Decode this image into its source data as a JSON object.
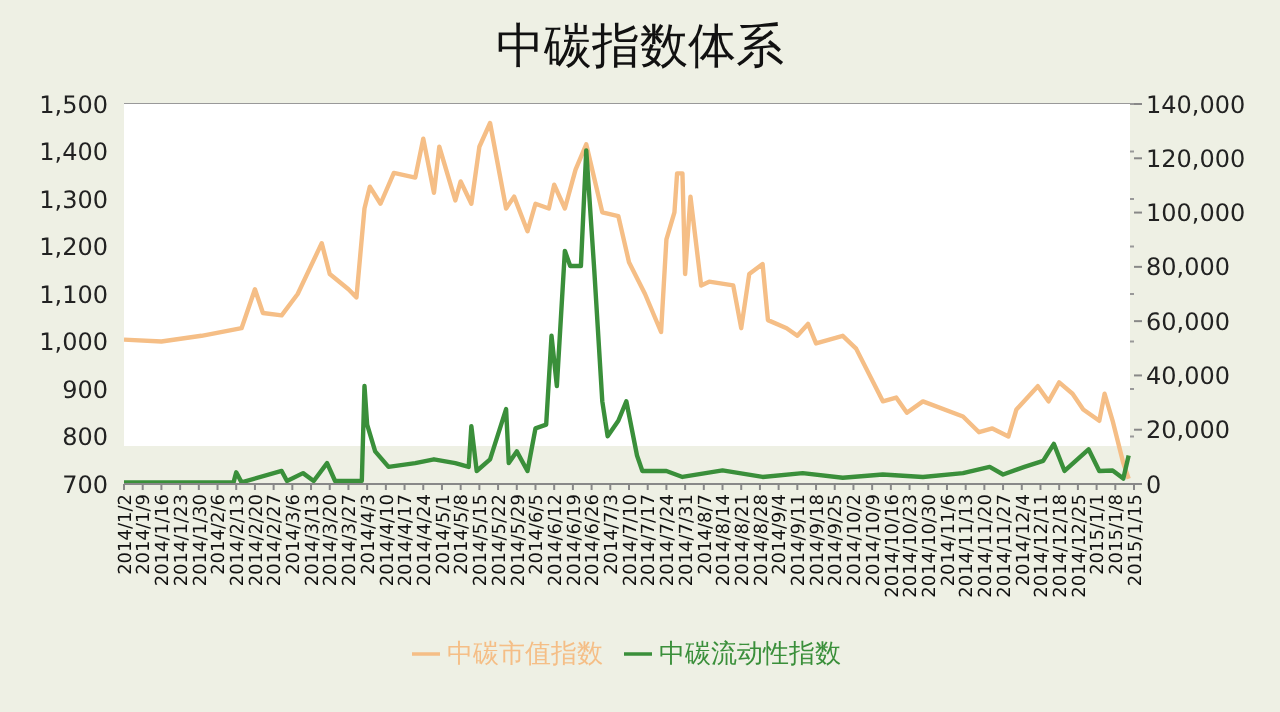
{
  "chart_data": {
    "type": "line",
    "title": "中碳指数体系",
    "xlim": [
      "2014-01-02",
      "2015-01-15"
    ],
    "xticks": [
      {
        "value": "2014-01-02",
        "label": "2014/1/2"
      },
      {
        "value": "2014-01-09",
        "label": "2014/1/9"
      },
      {
        "value": "2014-01-16",
        "label": "2014/1/16"
      },
      {
        "value": "2014-01-23",
        "label": "2014/1/23"
      },
      {
        "value": "2014-01-30",
        "label": "2014/1/30"
      },
      {
        "value": "2014-02-06",
        "label": "2014/2/6"
      },
      {
        "value": "2014-02-13",
        "label": "2014/2/13"
      },
      {
        "value": "2014-02-20",
        "label": "2014/2/20"
      },
      {
        "value": "2014-02-27",
        "label": "2014/2/27"
      },
      {
        "value": "2014-03-06",
        "label": "2014/3/6"
      },
      {
        "value": "2014-03-13",
        "label": "2014/3/13"
      },
      {
        "value": "2014-03-20",
        "label": "2014/3/20"
      },
      {
        "value": "2014-03-27",
        "label": "2014/3/27"
      },
      {
        "value": "2014-04-03",
        "label": "2014/4/3"
      },
      {
        "value": "2014-04-10",
        "label": "2014/4/10"
      },
      {
        "value": "2014-04-17",
        "label": "2014/4/17"
      },
      {
        "value": "2014-04-24",
        "label": "2014/4/24"
      },
      {
        "value": "2014-05-01",
        "label": "2014/5/1"
      },
      {
        "value": "2014-05-08",
        "label": "2014/5/8"
      },
      {
        "value": "2014-05-15",
        "label": "2014/5/15"
      },
      {
        "value": "2014-05-22",
        "label": "2014/5/22"
      },
      {
        "value": "2014-05-29",
        "label": "2014/5/29"
      },
      {
        "value": "2014-06-05",
        "label": "2014/6/5"
      },
      {
        "value": "2014-06-12",
        "label": "2014/6/12"
      },
      {
        "value": "2014-06-19",
        "label": "2014/6/19"
      },
      {
        "value": "2014-06-26",
        "label": "2014/6/26"
      },
      {
        "value": "2014-07-03",
        "label": "2014/7/3"
      },
      {
        "value": "2014-07-10",
        "label": "2014/7/10"
      },
      {
        "value": "2014-07-17",
        "label": "2014/7/17"
      },
      {
        "value": "2014-07-24",
        "label": "2014/7/24"
      },
      {
        "value": "2014-07-31",
        "label": "2014/7/31"
      },
      {
        "value": "2014-08-07",
        "label": "2014/8/7"
      },
      {
        "value": "2014-08-14",
        "label": "2014/8/14"
      },
      {
        "value": "2014-08-21",
        "label": "2014/8/21"
      },
      {
        "value": "2014-08-28",
        "label": "2014/8/28"
      },
      {
        "value": "2014-09-04",
        "label": "2014/9/4"
      },
      {
        "value": "2014-09-11",
        "label": "2014/9/11"
      },
      {
        "value": "2014-09-18",
        "label": "2014/9/18"
      },
      {
        "value": "2014-09-25",
        "label": "2014/9/25"
      },
      {
        "value": "2014-10-02",
        "label": "2014/10/2"
      },
      {
        "value": "2014-10-09",
        "label": "2014/10/9"
      },
      {
        "value": "2014-10-16",
        "label": "2014/10/16"
      },
      {
        "value": "2014-10-23",
        "label": "2014/10/23"
      },
      {
        "value": "2014-10-30",
        "label": "2014/10/30"
      },
      {
        "value": "2014-11-06",
        "label": "2014/11/6"
      },
      {
        "value": "2014-11-13",
        "label": "2014/11/13"
      },
      {
        "value": "2014-11-20",
        "label": "2014/11/20"
      },
      {
        "value": "2014-11-27",
        "label": "2014/11/27"
      },
      {
        "value": "2014-12-04",
        "label": "2014/12/4"
      },
      {
        "value": "2014-12-11",
        "label": "2014/12/11"
      },
      {
        "value": "2014-12-18",
        "label": "2014/12/18"
      },
      {
        "value": "2014-12-25",
        "label": "2014/12/25"
      },
      {
        "value": "2015-01-01",
        "label": "2015/1/1"
      },
      {
        "value": "2015-01-08",
        "label": "2015/1/8"
      },
      {
        "value": "2015-01-15",
        "label": "2015/1/15"
      }
    ],
    "ylim": [
      700,
      1500
    ],
    "yticks": [
      {
        "value": 700,
        "label": "700"
      },
      {
        "value": 800,
        "label": "800"
      },
      {
        "value": 900,
        "label": "900"
      },
      {
        "value": 1000,
        "label": "1,000"
      },
      {
        "value": 1100,
        "label": "1,100"
      },
      {
        "value": 1200,
        "label": "1,200"
      },
      {
        "value": 1300,
        "label": "1,300"
      },
      {
        "value": 1400,
        "label": "1,400"
      },
      {
        "value": 1500,
        "label": "1,500"
      }
    ],
    "y2lim": [
      0,
      140000
    ],
    "y2ticks": [
      {
        "value": 0,
        "label": "0"
      },
      {
        "value": 20000,
        "label": "20,000"
      },
      {
        "value": 40000,
        "label": "40,000"
      },
      {
        "value": 60000,
        "label": "60,000"
      },
      {
        "value": 80000,
        "label": "80,000"
      },
      {
        "value": 100000,
        "label": "100,000"
      },
      {
        "value": 120000,
        "label": "120,000"
      },
      {
        "value": 140000,
        "label": "140,000"
      }
    ],
    "grid": "y",
    "legend": "bottom",
    "marker": "none",
    "line_style": "solid",
    "series": [
      {
        "name": "中碳市值指数",
        "color": "#f5be86",
        "x": [
          "2014-01-02",
          "2014-01-16",
          "2014-01-31",
          "2014-02-15",
          "2014-02-20",
          "2014-02-23",
          "2014-03-02",
          "2014-03-08",
          "2014-03-17",
          "2014-03-20",
          "2014-03-27",
          "2014-03-30",
          "2014-04-02",
          "2014-04-04",
          "2014-04-08",
          "2014-04-13",
          "2014-04-21",
          "2014-04-24",
          "2014-04-28",
          "2014-04-30",
          "2014-05-06",
          "2014-05-08",
          "2014-05-12",
          "2014-05-15",
          "2014-05-19",
          "2014-05-25",
          "2014-05-28",
          "2014-06-02",
          "2014-06-05",
          "2014-06-10",
          "2014-06-12",
          "2014-06-16",
          "2014-06-20",
          "2014-06-24",
          "2014-06-30",
          "2014-07-06",
          "2014-07-10",
          "2014-07-16",
          "2014-07-22",
          "2014-07-24",
          "2014-07-27",
          "2014-07-28",
          "2014-07-30",
          "2014-07-31",
          "2014-08-02",
          "2014-08-06",
          "2014-08-09",
          "2014-08-18",
          "2014-08-21",
          "2014-08-24",
          "2014-08-29",
          "2014-08-31",
          "2014-09-07",
          "2014-09-11",
          "2014-09-15",
          "2014-09-18",
          "2014-09-28",
          "2014-10-03",
          "2014-10-13",
          "2014-10-18",
          "2014-10-22",
          "2014-10-28",
          "2014-11-12",
          "2014-11-18",
          "2014-11-23",
          "2014-11-29",
          "2014-12-02",
          "2014-12-10",
          "2014-12-14",
          "2014-12-18",
          "2014-12-23",
          "2014-12-27",
          "2015-01-02",
          "2015-01-04",
          "2015-01-07",
          "2015-01-11",
          "2015-01-13"
        ],
        "values": [
          1004,
          1000,
          1012,
          1028,
          1110,
          1060,
          1055,
          1100,
          1207,
          1142,
          1110,
          1093,
          1280,
          1326,
          1290,
          1355,
          1345,
          1427,
          1313,
          1410,
          1297,
          1337,
          1290,
          1410,
          1460,
          1280,
          1305,
          1232,
          1290,
          1280,
          1330,
          1280,
          1362,
          1415,
          1272,
          1264,
          1167,
          1100,
          1020,
          1215,
          1272,
          1354,
          1354,
          1142,
          1305,
          1118,
          1126,
          1118,
          1028,
          1142,
          1163,
          1045,
          1028,
          1012,
          1037,
          996,
          1012,
          985,
          874,
          882,
          850,
          874,
          842,
          809,
          817,
          800,
          857,
          906,
          874,
          914,
          890,
          857,
          833,
          890,
          833,
          744,
          711
        ]
      },
      {
        "name": "中碳流动性指数",
        "color": "#3a8f3a",
        "axis": "y2",
        "x": [
          "2014-01-02",
          "2014-02-12",
          "2014-02-13",
          "2014-02-15",
          "2014-03-02",
          "2014-03-04",
          "2014-03-10",
          "2014-03-14",
          "2014-03-19",
          "2014-03-22",
          "2014-04-01",
          "2014-04-02",
          "2014-04-03",
          "2014-04-06",
          "2014-04-11",
          "2014-04-21",
          "2014-04-28",
          "2014-05-06",
          "2014-05-11",
          "2014-05-12",
          "2014-05-14",
          "2014-05-19",
          "2014-05-25",
          "2014-05-26",
          "2014-05-29",
          "2014-06-02",
          "2014-06-05",
          "2014-06-09",
          "2014-06-11",
          "2014-06-13",
          "2014-06-16",
          "2014-06-18",
          "2014-06-22",
          "2014-06-24",
          "2014-06-27",
          "2014-06-30",
          "2014-07-02",
          "2014-07-06",
          "2014-07-09",
          "2014-07-13",
          "2014-07-15",
          "2014-07-24",
          "2014-07-30",
          "2014-08-14",
          "2014-08-29",
          "2014-09-13",
          "2014-09-28",
          "2014-10-13",
          "2014-10-28",
          "2014-11-12",
          "2014-11-22",
          "2014-11-27",
          "2014-12-05",
          "2014-12-12",
          "2014-12-16",
          "2014-12-20",
          "2014-12-29",
          "2015-01-02",
          "2015-01-07",
          "2015-01-11",
          "2015-01-13"
        ],
        "values": [
          600,
          600,
          4300,
          600,
          4800,
          1100,
          4000,
          1100,
          7700,
          1100,
          1100,
          36100,
          21900,
          12000,
          6300,
          7700,
          9100,
          7700,
          6300,
          21300,
          4800,
          9100,
          27600,
          7700,
          12000,
          4800,
          20500,
          21900,
          54600,
          36100,
          85900,
          80300,
          80300,
          122900,
          78800,
          30500,
          17600,
          23300,
          30500,
          10500,
          4800,
          4800,
          2600,
          5000,
          2600,
          4000,
          2300,
          3500,
          2600,
          4000,
          6300,
          3500,
          6300,
          8500,
          14800,
          4800,
          12800,
          4800,
          5000,
          2000,
          10500
        ]
      }
    ]
  }
}
